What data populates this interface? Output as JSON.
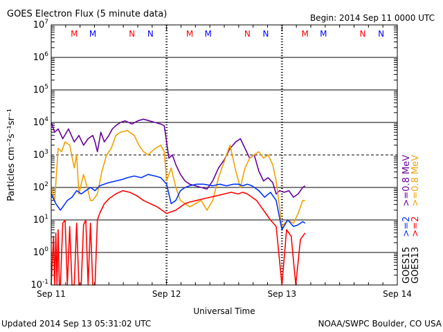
{
  "header": {
    "title": "GOES Electron Flux (5 minute data)",
    "begin": "Begin: 2014 Sep 11 0000 UTC"
  },
  "footer": {
    "updated": "Updated 2014 Sep 13 05:31:02 UTC",
    "credit": "NOAA/SWPC Boulder, CO USA"
  },
  "colors": {
    "goes13_gt2": "#ff0000",
    "goes13_gt08": "#f0a000",
    "goes15_gt2": "#0033ff",
    "goes15_gt08": "#660099",
    "marker_m_red": "#ff0000",
    "marker_m_blue": "#0000ff"
  },
  "legend": {
    "placement": "right",
    "groups": [
      {
        "satellite": "GOES13",
        "entries": [
          {
            "label": ">=2",
            "color": "#ff0000"
          },
          {
            "label": ">=0.8 MeV",
            "color": "#f0a000"
          }
        ]
      },
      {
        "satellite": "GOES15",
        "entries": [
          {
            "label": ">=2",
            "color": "#0033ff"
          },
          {
            "label": ">=0.8 MeV",
            "color": "#660099"
          }
        ]
      }
    ]
  },
  "chart_data": {
    "type": "line",
    "title": "GOES Electron Flux (5 minute data)",
    "xlabel": "Universal Time",
    "ylabel": "Particles cm⁻²s⁻¹sr⁻¹",
    "x_unit": "days since 2014 Sep 11 0000 UTC",
    "xlim": [
      0,
      3
    ],
    "ylim": [
      -1,
      7
    ],
    "y_scale": "log",
    "x_ticks": [
      {
        "value": 0,
        "label": "Sep 11"
      },
      {
        "value": 1,
        "label": "Sep 12"
      },
      {
        "value": 2,
        "label": "Sep 13"
      },
      {
        "value": 3,
        "label": "Sep 14"
      }
    ],
    "y_ticks": [
      {
        "value": -1,
        "base": "10",
        "exp": "-1"
      },
      {
        "value": 0,
        "base": "10",
        "exp": "0"
      },
      {
        "value": 1,
        "base": "10",
        "exp": "1"
      },
      {
        "value": 2,
        "base": "10",
        "exp": "2"
      },
      {
        "value": 3,
        "base": "10",
        "exp": "3"
      },
      {
        "value": 4,
        "base": "10",
        "exp": "4"
      },
      {
        "value": 5,
        "base": "10",
        "exp": "5"
      },
      {
        "value": 6,
        "base": "10",
        "exp": "6"
      },
      {
        "value": 7,
        "base": "10",
        "exp": "7"
      }
    ],
    "grid": {
      "solid_decades": [
        0,
        1,
        2,
        4,
        5,
        6
      ],
      "dashed_decades": [
        3
      ],
      "day_dividers_dashed": true
    },
    "markers": [
      {
        "label": "M",
        "x": 0.2,
        "color": "#ff0000"
      },
      {
        "label": "M",
        "x": 0.36,
        "color": "#0000ff"
      },
      {
        "label": "N",
        "x": 0.7,
        "color": "#ff0000"
      },
      {
        "label": "N",
        "x": 0.86,
        "color": "#0000ff"
      },
      {
        "label": "M",
        "x": 1.2,
        "color": "#ff0000"
      },
      {
        "label": "M",
        "x": 1.36,
        "color": "#0000ff"
      },
      {
        "label": "N",
        "x": 1.7,
        "color": "#ff0000"
      },
      {
        "label": "N",
        "x": 1.86,
        "color": "#0000ff"
      },
      {
        "label": "M",
        "x": 2.2,
        "color": "#ff0000"
      },
      {
        "label": "M",
        "x": 2.36,
        "color": "#0000ff"
      },
      {
        "label": "N",
        "x": 2.7,
        "color": "#ff0000"
      },
      {
        "label": "N",
        "x": 2.86,
        "color": "#0000ff"
      }
    ],
    "series": [
      {
        "name": "GOES15 >=0.8 MeV",
        "color": "#660099",
        "x": [
          0.0,
          0.03,
          0.06,
          0.1,
          0.15,
          0.2,
          0.24,
          0.28,
          0.32,
          0.36,
          0.38,
          0.4,
          0.43,
          0.46,
          0.5,
          0.53,
          0.56,
          0.6,
          0.64,
          0.7,
          0.75,
          0.8,
          0.85,
          0.9,
          0.95,
          0.98,
          1.0,
          1.02,
          1.05,
          1.08,
          1.12,
          1.16,
          1.2,
          1.25,
          1.3,
          1.35,
          1.4,
          1.45,
          1.5,
          1.55,
          1.6,
          1.64,
          1.68,
          1.72,
          1.76,
          1.8,
          1.84,
          1.88,
          1.92,
          1.95,
          1.98,
          2.02,
          2.06,
          2.1,
          2.14,
          2.18,
          2.2
        ],
        "y": [
          4.0,
          3.7,
          3.8,
          3.5,
          3.8,
          3.4,
          3.6,
          3.3,
          3.5,
          3.6,
          3.4,
          3.1,
          3.7,
          3.4,
          3.6,
          3.8,
          3.9,
          4.0,
          4.05,
          3.95,
          4.05,
          4.1,
          4.05,
          4.0,
          3.95,
          3.9,
          3.4,
          2.9,
          3.0,
          2.7,
          2.4,
          2.2,
          2.1,
          2.05,
          2.0,
          1.95,
          2.2,
          2.6,
          2.85,
          3.2,
          3.4,
          3.5,
          3.2,
          2.9,
          3.0,
          2.5,
          2.2,
          2.3,
          2.15,
          1.8,
          1.9,
          1.85,
          1.9,
          1.7,
          1.8,
          2.0,
          2.05
        ]
      },
      {
        "name": "GOES13 >=0.8 MeV",
        "color": "#f0a000",
        "x": [
          0.0,
          0.03,
          0.06,
          0.09,
          0.12,
          0.16,
          0.2,
          0.22,
          0.24,
          0.28,
          0.32,
          0.34,
          0.36,
          0.4,
          0.44,
          0.48,
          0.52,
          0.56,
          0.6,
          0.66,
          0.72,
          0.76,
          0.8,
          0.84,
          0.9,
          0.95,
          0.98,
          1.0,
          1.04,
          1.08,
          1.12,
          1.16,
          1.2,
          1.25,
          1.3,
          1.35,
          1.4,
          1.45,
          1.5,
          1.55,
          1.6,
          1.64,
          1.68,
          1.72,
          1.76,
          1.8,
          1.84,
          1.88,
          1.92,
          1.95,
          2.0,
          2.05,
          2.1,
          2.14,
          2.18,
          2.2
        ],
        "y": [
          2.0,
          1.6,
          3.2,
          3.1,
          3.4,
          3.3,
          2.6,
          3.0,
          1.8,
          2.4,
          1.9,
          1.6,
          1.6,
          1.8,
          2.5,
          3.0,
          3.2,
          3.6,
          3.7,
          3.75,
          3.6,
          3.3,
          3.1,
          3.0,
          3.2,
          3.3,
          3.1,
          2.2,
          2.6,
          2.0,
          1.6,
          1.5,
          1.4,
          1.5,
          1.6,
          1.3,
          1.6,
          2.3,
          2.8,
          3.3,
          2.5,
          2.0,
          2.6,
          2.9,
          3.0,
          3.1,
          2.9,
          3.0,
          2.7,
          2.2,
          0.8,
          1.0,
          0.9,
          1.2,
          1.6,
          1.6
        ]
      },
      {
        "name": "GOES15 >=2 MeV",
        "color": "#0033ff",
        "x": [
          0.0,
          0.04,
          0.08,
          0.1,
          0.14,
          0.18,
          0.22,
          0.26,
          0.3,
          0.34,
          0.38,
          0.42,
          0.46,
          0.5,
          0.56,
          0.62,
          0.66,
          0.72,
          0.78,
          0.84,
          0.9,
          0.95,
          1.0,
          1.04,
          1.08,
          1.12,
          1.16,
          1.2,
          1.26,
          1.32,
          1.4,
          1.46,
          1.52,
          1.58,
          1.62,
          1.66,
          1.7,
          1.74,
          1.8,
          1.85,
          1.9,
          1.95,
          2.0,
          2.05,
          2.1,
          2.14,
          2.18,
          2.2
        ],
        "y": [
          1.8,
          1.5,
          1.3,
          1.4,
          1.6,
          1.7,
          1.9,
          1.8,
          1.9,
          2.0,
          1.9,
          2.05,
          2.1,
          2.15,
          2.2,
          2.25,
          2.3,
          2.35,
          2.3,
          2.4,
          2.35,
          2.3,
          2.1,
          1.5,
          1.6,
          1.9,
          2.0,
          2.05,
          2.1,
          2.1,
          2.05,
          2.1,
          2.05,
          2.1,
          2.1,
          2.05,
          2.1,
          2.05,
          1.9,
          1.7,
          1.85,
          1.6,
          0.7,
          1.0,
          0.8,
          0.85,
          0.95,
          0.9
        ]
      },
      {
        "name": "GOES13 >=2 MeV",
        "color": "#ff0000",
        "x": [
          0.0,
          0.02,
          0.03,
          0.04,
          0.05,
          0.06,
          0.07,
          0.08,
          0.1,
          0.12,
          0.14,
          0.16,
          0.18,
          0.2,
          0.22,
          0.24,
          0.26,
          0.28,
          0.3,
          0.32,
          0.34,
          0.36,
          0.38,
          0.4,
          0.42,
          0.44,
          0.46,
          0.5,
          0.56,
          0.62,
          0.68,
          0.74,
          0.8,
          0.86,
          0.92,
          0.96,
          1.0,
          1.04,
          1.08,
          1.12,
          1.16,
          1.2,
          1.26,
          1.32,
          1.38,
          1.44,
          1.5,
          1.56,
          1.62,
          1.66,
          1.7,
          1.74,
          1.78,
          1.82,
          1.86,
          1.9,
          1.95,
          2.0,
          2.04,
          2.08,
          2.12,
          2.16,
          2.2
        ],
        "y": [
          -1.0,
          0.5,
          -1.0,
          0.6,
          -1.0,
          0.7,
          -1.0,
          -1.0,
          0.9,
          1.0,
          -1.0,
          0.8,
          -1.0,
          -1.0,
          0.9,
          -1.0,
          -1.0,
          0.85,
          1.0,
          -1.0,
          0.9,
          -1.0,
          -1.0,
          1.0,
          1.2,
          1.35,
          1.5,
          1.65,
          1.8,
          1.9,
          1.85,
          1.75,
          1.6,
          1.5,
          1.4,
          1.3,
          1.2,
          1.25,
          1.3,
          1.4,
          1.5,
          1.55,
          1.6,
          1.65,
          1.7,
          1.75,
          1.8,
          1.85,
          1.8,
          1.85,
          1.8,
          1.7,
          1.6,
          1.4,
          1.2,
          1.0,
          0.8,
          -1.0,
          0.7,
          0.5,
          -1.0,
          0.4,
          0.6
        ]
      }
    ]
  }
}
